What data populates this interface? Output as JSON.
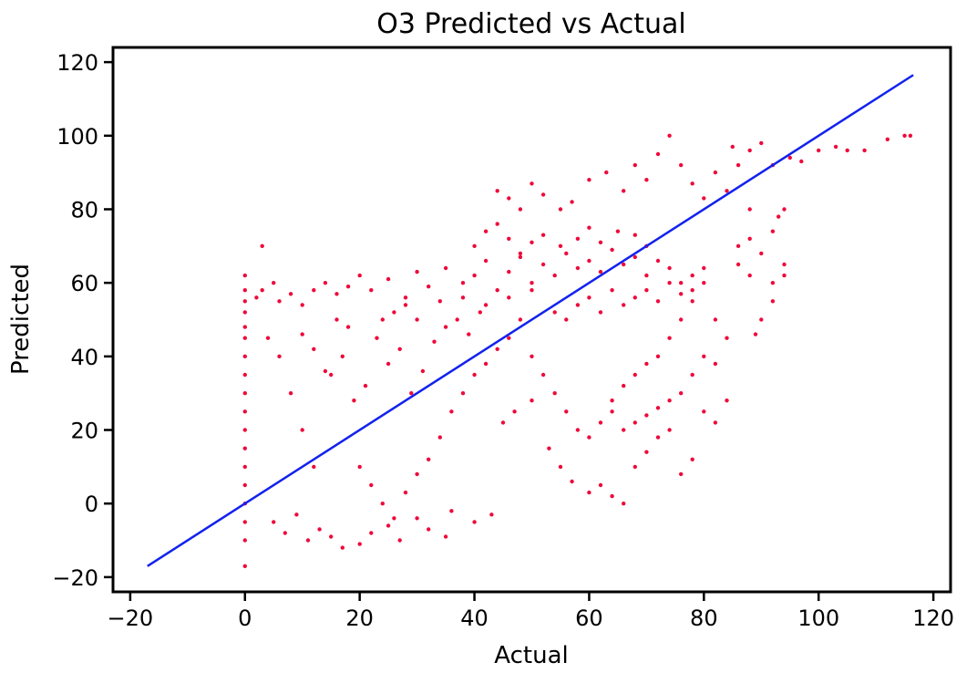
{
  "chart_data": {
    "type": "scatter",
    "title": "O3 Predicted vs Actual",
    "xlabel": "Actual",
    "ylabel": "Predicted",
    "xlim": [
      -23,
      123
    ],
    "ylim": [
      -24,
      124
    ],
    "xticks": [
      -20,
      0,
      20,
      40,
      60,
      80,
      100,
      120
    ],
    "yticks": [
      -20,
      0,
      20,
      40,
      60,
      80,
      100,
      120
    ],
    "grid": false,
    "colors": {
      "points": "#ee0a3a",
      "fit_line": "#1222ee",
      "axes": "#000000"
    },
    "series": [
      {
        "type": "scatter",
        "points": [
          [
            0,
            62
          ],
          [
            0,
            58
          ],
          [
            0,
            55
          ],
          [
            0,
            52
          ],
          [
            0,
            48
          ],
          [
            0,
            45
          ],
          [
            0,
            40
          ],
          [
            0,
            35
          ],
          [
            0,
            30
          ],
          [
            0,
            25
          ],
          [
            0,
            20
          ],
          [
            0,
            15
          ],
          [
            0,
            10
          ],
          [
            0,
            5
          ],
          [
            0,
            0
          ],
          [
            0,
            -5
          ],
          [
            0,
            -10
          ],
          [
            0,
            -17
          ],
          [
            2,
            56
          ],
          [
            3,
            58
          ],
          [
            5,
            60
          ],
          [
            6,
            55
          ],
          [
            8,
            57
          ],
          [
            10,
            54
          ],
          [
            12,
            58
          ],
          [
            14,
            60
          ],
          [
            16,
            57
          ],
          [
            18,
            59
          ],
          [
            3,
            70
          ],
          [
            4,
            45
          ],
          [
            6,
            40
          ],
          [
            8,
            30
          ],
          [
            10,
            20
          ],
          [
            12,
            10
          ],
          [
            5,
            -5
          ],
          [
            7,
            -8
          ],
          [
            9,
            -3
          ],
          [
            11,
            -10
          ],
          [
            13,
            -7
          ],
          [
            15,
            -9
          ],
          [
            17,
            -12
          ],
          [
            20,
            -11
          ],
          [
            22,
            -8
          ],
          [
            25,
            -6
          ],
          [
            27,
            -10
          ],
          [
            30,
            -4
          ],
          [
            32,
            -7
          ],
          [
            35,
            -9
          ],
          [
            20,
            62
          ],
          [
            22,
            58
          ],
          [
            25,
            61
          ],
          [
            28,
            56
          ],
          [
            30,
            63
          ],
          [
            32,
            59
          ],
          [
            35,
            64
          ],
          [
            38,
            60
          ],
          [
            40,
            62
          ],
          [
            42,
            66
          ],
          [
            44,
            58
          ],
          [
            46,
            63
          ],
          [
            48,
            67
          ],
          [
            50,
            60
          ],
          [
            52,
            65
          ],
          [
            54,
            62
          ],
          [
            56,
            68
          ],
          [
            58,
            64
          ],
          [
            60,
            66
          ],
          [
            62,
            63
          ],
          [
            64,
            69
          ],
          [
            66,
            65
          ],
          [
            68,
            67
          ],
          [
            70,
            62
          ],
          [
            72,
            66
          ],
          [
            74,
            64
          ],
          [
            76,
            60
          ],
          [
            78,
            58
          ],
          [
            40,
            70
          ],
          [
            42,
            74
          ],
          [
            44,
            76
          ],
          [
            46,
            72
          ],
          [
            48,
            68
          ],
          [
            50,
            71
          ],
          [
            52,
            73
          ],
          [
            55,
            70
          ],
          [
            58,
            72
          ],
          [
            60,
            75
          ],
          [
            62,
            71
          ],
          [
            65,
            74
          ],
          [
            68,
            73
          ],
          [
            70,
            70
          ],
          [
            60,
            88
          ],
          [
            63,
            90
          ],
          [
            66,
            85
          ],
          [
            68,
            92
          ],
          [
            70,
            88
          ],
          [
            72,
            95
          ],
          [
            74,
            100
          ],
          [
            76,
            92
          ],
          [
            78,
            87
          ],
          [
            80,
            83
          ],
          [
            82,
            90
          ],
          [
            84,
            85
          ],
          [
            86,
            92
          ],
          [
            88,
            80
          ],
          [
            85,
            97
          ],
          [
            88,
            96
          ],
          [
            90,
            98
          ],
          [
            92,
            92
          ],
          [
            95,
            94
          ],
          [
            97,
            93
          ],
          [
            100,
            96
          ],
          [
            103,
            97
          ],
          [
            105,
            96
          ],
          [
            108,
            96
          ],
          [
            112,
            99
          ],
          [
            115,
            100
          ],
          [
            116,
            100
          ],
          [
            44,
            85
          ],
          [
            46,
            83
          ],
          [
            48,
            80
          ],
          [
            50,
            87
          ],
          [
            52,
            84
          ],
          [
            55,
            80
          ],
          [
            57,
            82
          ],
          [
            45,
            22
          ],
          [
            47,
            25
          ],
          [
            50,
            28
          ],
          [
            53,
            15
          ],
          [
            55,
            10
          ],
          [
            57,
            6
          ],
          [
            60,
            3
          ],
          [
            62,
            5
          ],
          [
            64,
            2
          ],
          [
            66,
            0
          ],
          [
            68,
            10
          ],
          [
            70,
            14
          ],
          [
            72,
            18
          ],
          [
            74,
            20
          ],
          [
            76,
            8
          ],
          [
            78,
            12
          ],
          [
            80,
            25
          ],
          [
            82,
            22
          ],
          [
            84,
            28
          ],
          [
            36,
            -2
          ],
          [
            40,
            -5
          ],
          [
            43,
            -3
          ],
          [
            20,
            10
          ],
          [
            22,
            5
          ],
          [
            24,
            0
          ],
          [
            26,
            -4
          ],
          [
            28,
            3
          ],
          [
            30,
            8
          ],
          [
            32,
            12
          ],
          [
            34,
            18
          ],
          [
            36,
            25
          ],
          [
            38,
            30
          ],
          [
            40,
            35
          ],
          [
            42,
            38
          ],
          [
            44,
            42
          ],
          [
            46,
            45
          ],
          [
            48,
            50
          ],
          [
            50,
            40
          ],
          [
            52,
            35
          ],
          [
            54,
            30
          ],
          [
            56,
            25
          ],
          [
            58,
            20
          ],
          [
            60,
            18
          ],
          [
            62,
            22
          ],
          [
            64,
            28
          ],
          [
            66,
            32
          ],
          [
            68,
            35
          ],
          [
            70,
            38
          ],
          [
            72,
            40
          ],
          [
            74,
            45
          ],
          [
            76,
            50
          ],
          [
            78,
            55
          ],
          [
            80,
            60
          ],
          [
            82,
            50
          ],
          [
            84,
            45
          ],
          [
            78,
            35
          ],
          [
            80,
            40
          ],
          [
            82,
            38
          ],
          [
            76,
            30
          ],
          [
            74,
            28
          ],
          [
            72,
            26
          ],
          [
            70,
            24
          ],
          [
            68,
            22
          ],
          [
            66,
            20
          ],
          [
            64,
            25
          ],
          [
            15,
            35
          ],
          [
            17,
            40
          ],
          [
            19,
            28
          ],
          [
            21,
            32
          ],
          [
            23,
            45
          ],
          [
            25,
            38
          ],
          [
            27,
            42
          ],
          [
            29,
            30
          ],
          [
            31,
            36
          ],
          [
            33,
            44
          ],
          [
            35,
            48
          ],
          [
            37,
            50
          ],
          [
            39,
            46
          ],
          [
            41,
            52
          ],
          [
            10,
            46
          ],
          [
            12,
            42
          ],
          [
            14,
            36
          ],
          [
            16,
            50
          ],
          [
            18,
            48
          ],
          [
            24,
            50
          ],
          [
            26,
            52
          ],
          [
            28,
            54
          ],
          [
            30,
            50
          ],
          [
            34,
            55
          ],
          [
            38,
            56
          ],
          [
            42,
            54
          ],
          [
            46,
            56
          ],
          [
            50,
            58
          ],
          [
            86,
            70
          ],
          [
            88,
            72
          ],
          [
            90,
            68
          ],
          [
            92,
            74
          ],
          [
            94,
            65
          ],
          [
            94,
            62
          ],
          [
            92,
            55
          ],
          [
            90,
            50
          ],
          [
            89,
            46
          ],
          [
            94,
            80
          ],
          [
            93,
            78
          ],
          [
            92,
            60
          ],
          [
            88,
            62
          ],
          [
            86,
            65
          ],
          [
            54,
            52
          ],
          [
            56,
            50
          ],
          [
            58,
            54
          ],
          [
            60,
            56
          ],
          [
            62,
            52
          ],
          [
            64,
            58
          ],
          [
            66,
            54
          ],
          [
            68,
            56
          ],
          [
            70,
            58
          ],
          [
            72,
            55
          ],
          [
            74,
            60
          ],
          [
            76,
            57
          ],
          [
            78,
            62
          ],
          [
            80,
            64
          ]
        ]
      },
      {
        "type": "line",
        "points": [
          [
            -17,
            -17
          ],
          [
            116.5,
            116.5
          ]
        ]
      }
    ]
  }
}
